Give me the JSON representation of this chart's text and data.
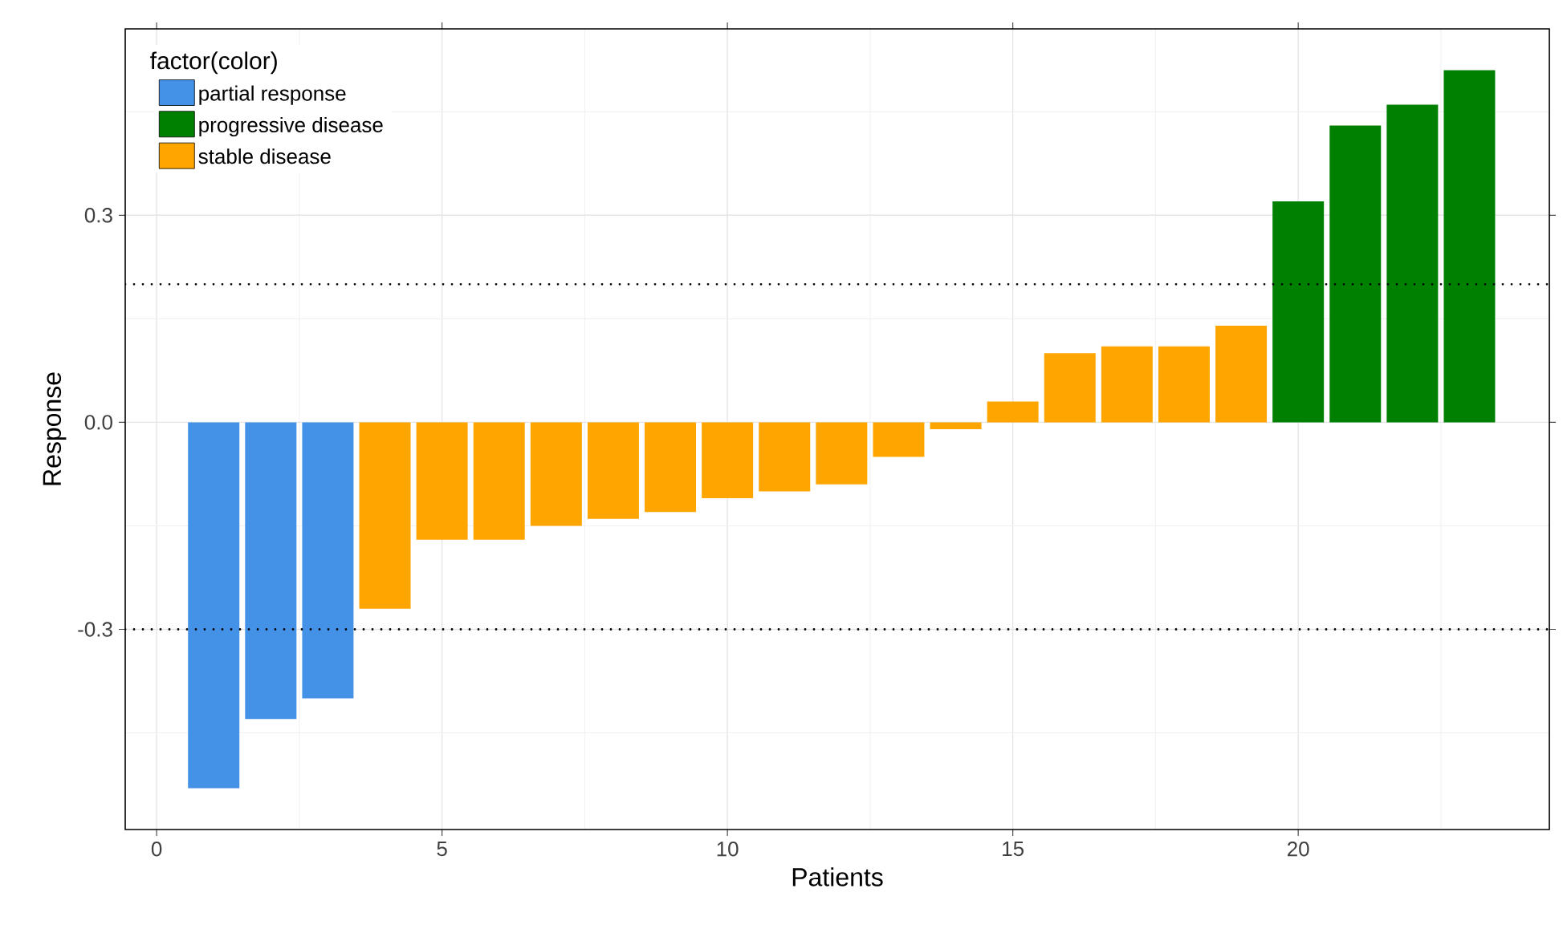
{
  "chart_data": {
    "type": "bar",
    "xlabel": "Patients",
    "ylabel": "Response",
    "legend_title": "factor(color)",
    "x": [
      1,
      2,
      3,
      4,
      5,
      6,
      7,
      8,
      9,
      10,
      11,
      12,
      13,
      14,
      15,
      16,
      17,
      18,
      19,
      20,
      21,
      22,
      23
    ],
    "series": [
      {
        "name": "partial response",
        "color": "#4392e8",
        "values": [
          -0.53,
          -0.43,
          -0.4,
          null,
          null,
          null,
          null,
          null,
          null,
          null,
          null,
          null,
          null,
          null,
          null,
          null,
          null,
          null,
          null,
          null,
          null,
          null,
          null
        ]
      },
      {
        "name": "progressive disease",
        "color": "#008000",
        "values": [
          null,
          null,
          null,
          null,
          null,
          null,
          null,
          null,
          null,
          null,
          null,
          null,
          null,
          null,
          null,
          null,
          null,
          null,
          null,
          0.32,
          0.43,
          0.46,
          0.51
        ]
      },
      {
        "name": "stable disease",
        "color": "#ffa500",
        "values": [
          null,
          null,
          null,
          -0.27,
          -0.17,
          -0.17,
          -0.15,
          -0.14,
          -0.13,
          -0.11,
          -0.1,
          -0.09,
          -0.05,
          -0.01,
          0.03,
          0.1,
          0.11,
          0.11,
          0.14,
          null,
          null,
          null,
          null
        ]
      }
    ],
    "xlim": [
      -0.55,
      24.4
    ],
    "ylim": [
      -0.59,
      0.57
    ],
    "xticks": [
      0,
      5,
      10,
      15,
      20
    ],
    "yticks": [
      -0.3,
      {
        "value": 0,
        "label": "0.0"
      },
      0.3
    ],
    "ref_lines": [
      {
        "axis": "y",
        "value": 0.2,
        "line_style": "dotted"
      },
      {
        "axis": "y",
        "value": -0.3,
        "line_style": "dotted"
      }
    ],
    "grid": true,
    "legend": "top left"
  }
}
